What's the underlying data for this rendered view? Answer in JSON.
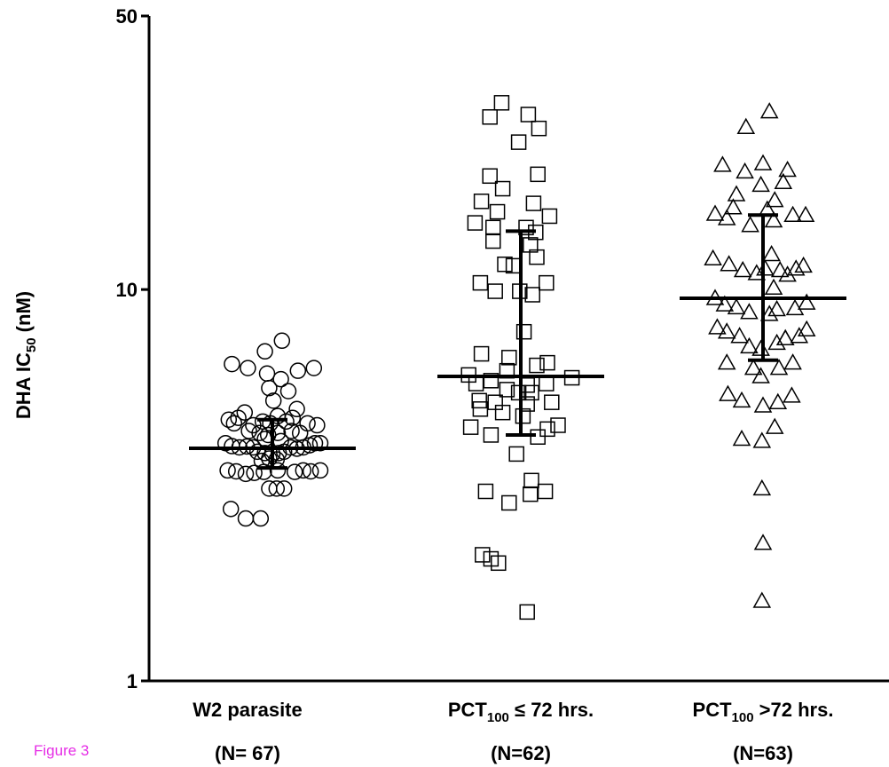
{
  "figure_label": "Figure 3",
  "colors": {
    "ink": "#000000",
    "figure_label": "#e62ee6",
    "background": "#ffffff"
  },
  "chart_data": {
    "type": "scatter",
    "title": "",
    "ylabel": {
      "main": "DHA IC",
      "sub": "50",
      "tail": " (nM)"
    },
    "yscale": "log",
    "ylim": [
      1,
      50
    ],
    "yticks": [
      {
        "value": 1,
        "label": "1"
      },
      {
        "value": 10,
        "label": "10"
      },
      {
        "value": 50,
        "label": "50"
      }
    ],
    "categories": [
      {
        "label": {
          "main": "W2 parasite",
          "sub": "",
          "tail": ""
        },
        "n_label": "(N= 67)"
      },
      {
        "label": {
          "main": "PCT",
          "sub": "100",
          "tail": " ≤ 72 hrs."
        },
        "n_label": "(N=62)"
      },
      {
        "label": {
          "main": "PCT",
          "sub": "100",
          "tail": " >72 hrs."
        },
        "n_label": "(N=63)"
      }
    ],
    "series": [
      {
        "marker": "circle",
        "median": 3.93,
        "iqr": [
          3.5,
          4.65
        ],
        "points": [
          [
            -0.38,
            6.45
          ],
          [
            -0.07,
            6.95
          ],
          [
            0.09,
            7.4
          ],
          [
            -0.23,
            6.3
          ],
          [
            -0.05,
            6.1
          ],
          [
            0.08,
            5.9
          ],
          [
            0.24,
            6.2
          ],
          [
            0.39,
            6.3
          ],
          [
            -0.03,
            5.6
          ],
          [
            0.15,
            5.5
          ],
          [
            0.01,
            5.2
          ],
          [
            -0.26,
            4.85
          ],
          [
            0.23,
            4.95
          ],
          [
            -0.32,
            4.7
          ],
          [
            0.05,
            4.75
          ],
          [
            0.19,
            4.7
          ],
          [
            -0.41,
            4.65
          ],
          [
            -0.36,
            4.55
          ],
          [
            -0.18,
            4.5
          ],
          [
            -0.09,
            4.6
          ],
          [
            -0.02,
            4.55
          ],
          [
            0.13,
            4.6
          ],
          [
            0.33,
            4.55
          ],
          [
            0.42,
            4.5
          ],
          [
            -0.22,
            4.35
          ],
          [
            -0.12,
            4.3
          ],
          [
            -0.04,
            4.25
          ],
          [
            0.05,
            4.3
          ],
          [
            0.18,
            4.35
          ],
          [
            0.26,
            4.3
          ],
          [
            -0.07,
            4.15
          ],
          [
            0.08,
            4.1
          ],
          [
            -0.44,
            4.05
          ],
          [
            -0.38,
            3.98
          ],
          [
            -0.31,
            3.95
          ],
          [
            -0.24,
            3.97
          ],
          [
            -0.18,
            3.95
          ],
          [
            0.17,
            3.95
          ],
          [
            0.23,
            3.92
          ],
          [
            0.29,
            3.95
          ],
          [
            0.35,
            4.0
          ],
          [
            0.4,
            4.05
          ],
          [
            0.45,
            4.05
          ],
          [
            -0.14,
            3.85
          ],
          [
            -0.07,
            3.82
          ],
          [
            0.0,
            3.8
          ],
          [
            0.06,
            3.82
          ],
          [
            0.11,
            3.85
          ],
          [
            -0.03,
            3.7
          ],
          [
            0.04,
            3.68
          ],
          [
            -0.1,
            3.65
          ],
          [
            -0.42,
            3.45
          ],
          [
            -0.34,
            3.43
          ],
          [
            -0.25,
            3.38
          ],
          [
            -0.17,
            3.4
          ],
          [
            -0.08,
            3.42
          ],
          [
            0.05,
            3.45
          ],
          [
            0.21,
            3.42
          ],
          [
            0.29,
            3.45
          ],
          [
            0.36,
            3.43
          ],
          [
            0.45,
            3.45
          ],
          [
            -0.03,
            3.1
          ],
          [
            0.04,
            3.1
          ],
          [
            0.11,
            3.1
          ],
          [
            -0.39,
            2.75
          ],
          [
            -0.25,
            2.6
          ],
          [
            -0.11,
            2.6
          ]
        ]
      },
      {
        "marker": "square",
        "median": 6.0,
        "iqr": [
          4.25,
          14.1
        ],
        "points": [
          [
            -0.18,
            30.0
          ],
          [
            -0.29,
            27.6
          ],
          [
            0.07,
            28.0
          ],
          [
            -0.02,
            23.8
          ],
          [
            0.17,
            25.8
          ],
          [
            -0.29,
            19.5
          ],
          [
            0.16,
            19.7
          ],
          [
            -0.17,
            18.1
          ],
          [
            -0.37,
            16.8
          ],
          [
            0.12,
            16.6
          ],
          [
            -0.22,
            15.8
          ],
          [
            0.27,
            15.4
          ],
          [
            -0.43,
            14.8
          ],
          [
            -0.26,
            14.4
          ],
          [
            0.05,
            14.4
          ],
          [
            0.14,
            14.0
          ],
          [
            -0.26,
            13.3
          ],
          [
            0.09,
            13.0
          ],
          [
            -0.15,
            11.6
          ],
          [
            0.15,
            12.1
          ],
          [
            -0.07,
            11.5
          ],
          [
            -0.38,
            10.4
          ],
          [
            0.24,
            10.4
          ],
          [
            -0.24,
            9.9
          ],
          [
            -0.01,
            9.9
          ],
          [
            0.11,
            9.7
          ],
          [
            0.03,
            7.8
          ],
          [
            -0.37,
            6.85
          ],
          [
            -0.11,
            6.7
          ],
          [
            0.15,
            6.4
          ],
          [
            0.25,
            6.5
          ],
          [
            -0.13,
            6.2
          ],
          [
            -0.49,
            6.05
          ],
          [
            0.48,
            5.95
          ],
          [
            -0.28,
            5.85
          ],
          [
            -0.42,
            5.75
          ],
          [
            0.24,
            5.75
          ],
          [
            0.06,
            5.7
          ],
          [
            -0.13,
            5.55
          ],
          [
            -0.02,
            5.45
          ],
          [
            0.1,
            5.45
          ],
          [
            -0.39,
            5.2
          ],
          [
            -0.24,
            5.15
          ],
          [
            0.29,
            5.15
          ],
          [
            0.06,
            5.1
          ],
          [
            -0.38,
            4.95
          ],
          [
            -0.17,
            4.85
          ],
          [
            0.02,
            4.75
          ],
          [
            -0.47,
            4.45
          ],
          [
            0.25,
            4.4
          ],
          [
            0.35,
            4.5
          ],
          [
            -0.28,
            4.25
          ],
          [
            0.16,
            4.2
          ],
          [
            -0.04,
            3.8
          ],
          [
            0.1,
            3.25
          ],
          [
            0.09,
            3.0
          ],
          [
            -0.11,
            2.85
          ],
          [
            -0.33,
            3.05
          ],
          [
            0.23,
            3.05
          ],
          [
            -0.36,
            2.1
          ],
          [
            -0.28,
            2.05
          ],
          [
            -0.21,
            2.0
          ],
          [
            0.06,
            1.5
          ]
        ]
      },
      {
        "marker": "triangle",
        "median": 9.5,
        "iqr": [
          6.6,
          15.5
        ],
        "points": [
          [
            0.06,
            28.5
          ],
          [
            -0.16,
            26.0
          ],
          [
            -0.38,
            20.8
          ],
          [
            -0.17,
            20.0
          ],
          [
            0.0,
            21.0
          ],
          [
            0.23,
            20.2
          ],
          [
            -0.02,
            18.5
          ],
          [
            0.19,
            18.8
          ],
          [
            -0.25,
            17.5
          ],
          [
            0.11,
            16.9
          ],
          [
            -0.28,
            16.2
          ],
          [
            0.04,
            16.0
          ],
          [
            -0.45,
            15.6
          ],
          [
            -0.34,
            15.2
          ],
          [
            0.28,
            15.5
          ],
          [
            0.4,
            15.5
          ],
          [
            -0.12,
            14.6
          ],
          [
            0.1,
            15.0
          ],
          [
            -0.47,
            12.0
          ],
          [
            -0.32,
            11.6
          ],
          [
            -0.19,
            11.2
          ],
          [
            -0.06,
            11.0
          ],
          [
            0.02,
            11.3
          ],
          [
            0.08,
            12.3
          ],
          [
            0.16,
            11.2
          ],
          [
            0.23,
            10.9
          ],
          [
            0.31,
            11.3
          ],
          [
            0.38,
            11.5
          ],
          [
            -0.45,
            9.5
          ],
          [
            -0.36,
            9.15
          ],
          [
            -0.25,
            9.0
          ],
          [
            -0.13,
            8.75
          ],
          [
            0.06,
            8.65
          ],
          [
            0.13,
            8.9
          ],
          [
            0.3,
            8.95
          ],
          [
            0.41,
            9.25
          ],
          [
            -0.43,
            8.0
          ],
          [
            -0.34,
            7.8
          ],
          [
            -0.22,
            7.6
          ],
          [
            0.13,
            7.3
          ],
          [
            0.21,
            7.5
          ],
          [
            0.34,
            7.6
          ],
          [
            0.41,
            7.9
          ],
          [
            -0.02,
            7.05
          ],
          [
            -0.34,
            6.5
          ],
          [
            -0.09,
            6.3
          ],
          [
            0.15,
            6.3
          ],
          [
            0.28,
            6.5
          ],
          [
            -0.02,
            6.0
          ],
          [
            -0.33,
            5.4
          ],
          [
            -0.2,
            5.2
          ],
          [
            0.0,
            5.05
          ],
          [
            0.14,
            5.15
          ],
          [
            0.27,
            5.35
          ],
          [
            0.11,
            4.45
          ],
          [
            -0.2,
            4.15
          ],
          [
            -0.01,
            4.1
          ],
          [
            -0.01,
            3.1
          ],
          [
            0.0,
            2.25
          ],
          [
            -0.01,
            1.6
          ],
          [
            -0.13,
            7.15
          ],
          [
            0.1,
            10.1
          ],
          [
            0.21,
            7.5
          ]
        ]
      }
    ]
  }
}
